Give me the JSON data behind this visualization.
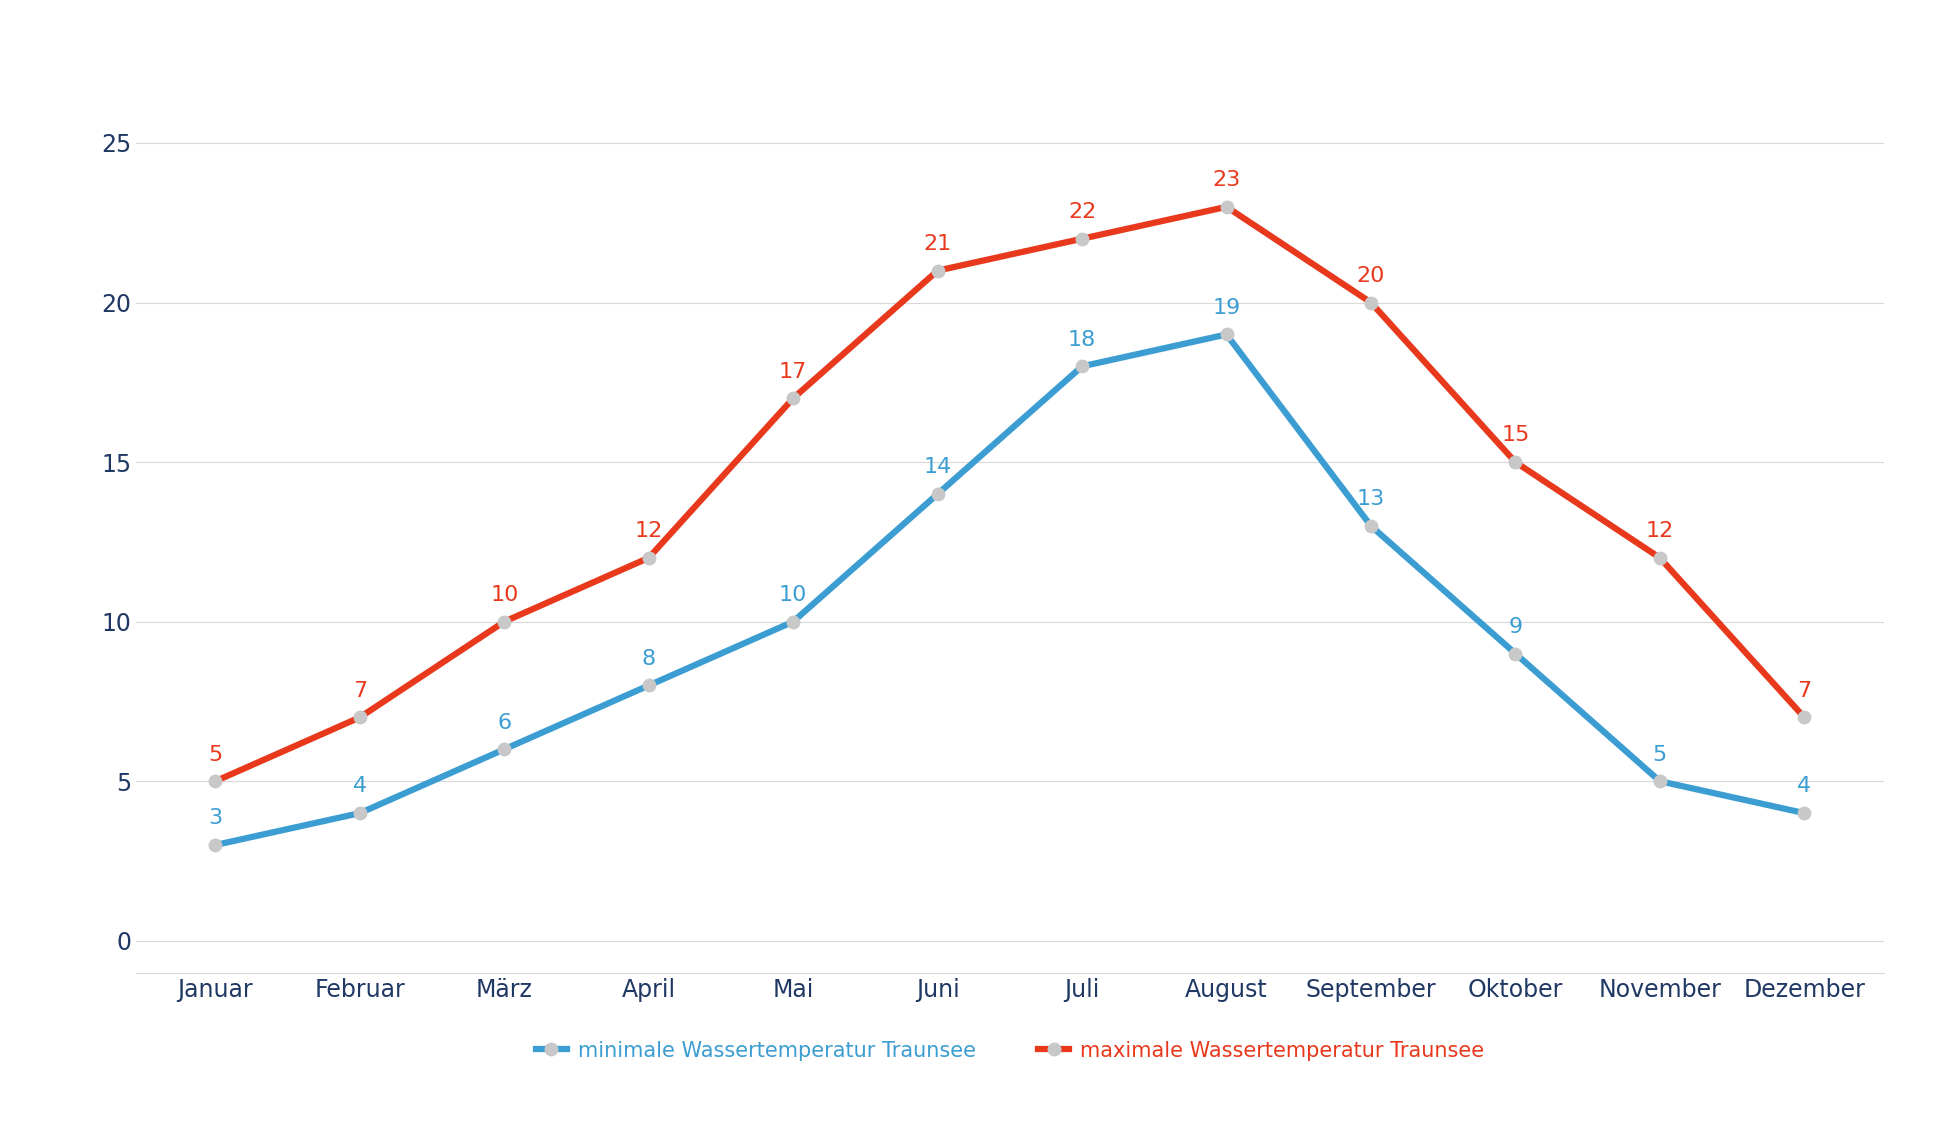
{
  "months": [
    "Januar",
    "Februar",
    "März",
    "April",
    "Mai",
    "Juni",
    "Juli",
    "August",
    "September",
    "Oktober",
    "November",
    "Dezember"
  ],
  "min_temps": [
    3,
    4,
    6,
    8,
    10,
    14,
    18,
    19,
    13,
    9,
    5,
    4
  ],
  "max_temps": [
    5,
    7,
    10,
    12,
    17,
    21,
    22,
    23,
    20,
    15,
    12,
    7
  ],
  "min_color": "#3B9DD2",
  "max_color": "#E8391D",
  "min_label": "minimale Wassertemperatur Traunsee",
  "max_label": "maximale Wassertemperatur Traunsee",
  "ylim": [
    -1,
    27
  ],
  "yticks": [
    0,
    5,
    10,
    15,
    20,
    25
  ],
  "background_color": "#ffffff",
  "grid_color": "#d9d9d9",
  "axis_label_color": "#203864",
  "annotation_fontsize": 16,
  "tick_fontsize": 17,
  "legend_fontsize": 15,
  "line_width": 4.5,
  "marker_size": 9,
  "marker_color": "#c8c8c8"
}
